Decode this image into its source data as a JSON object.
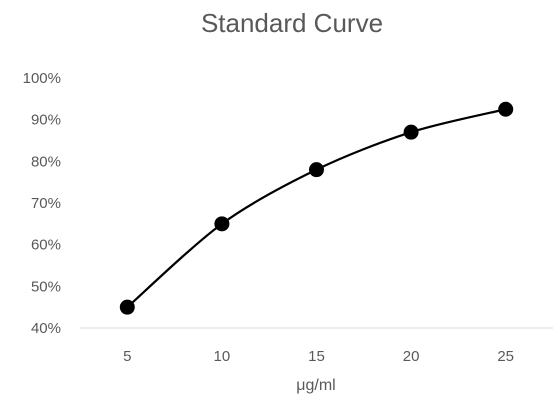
{
  "chart_data": {
    "type": "line",
    "title": "Standard Curve",
    "xlabel": "μg/ml",
    "ylabel": "",
    "categories": [
      "5",
      "10",
      "15",
      "20",
      "25"
    ],
    "series": [
      {
        "values": [
          45,
          65,
          78,
          87,
          92.5
        ]
      }
    ],
    "y_tick_labels": [
      "40%",
      "50%",
      "60%",
      "70%",
      "80%",
      "90%",
      "100%"
    ],
    "ylim": [
      40,
      100
    ],
    "y_unit": "percent",
    "grid": false,
    "legend": "none",
    "markers": "filled-circle",
    "line_color": "#000000",
    "marker_color": "#000000",
    "text_color": "#595959",
    "axis_color": "#d9d9d9"
  }
}
